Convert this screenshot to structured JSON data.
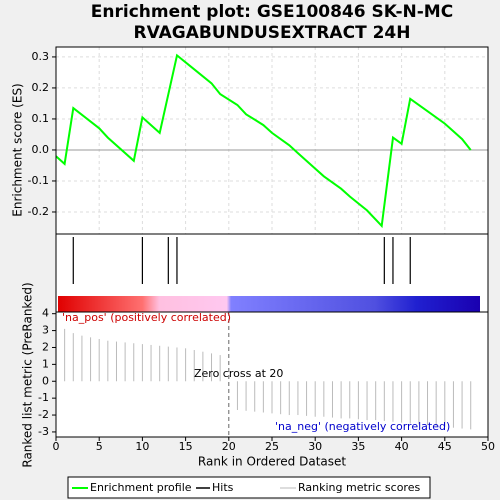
{
  "chart_data": [
    {
      "type": "line",
      "title": [
        "Enrichment plot: GSE100846 SK-N-MC",
        "RVAGABUNDUSEXTRACT 24H"
      ],
      "y_label": "Enrichment score (ES)",
      "xlim": [
        0,
        50
      ],
      "ylim": [
        -0.271,
        0.332
      ],
      "yticks": [
        -0.2,
        -0.1,
        {
          "value": 0,
          "label": "0.0"
        },
        0.1,
        0.2,
        0.3
      ],
      "grid": true,
      "x": [
        0,
        1,
        2,
        5,
        6,
        9,
        10,
        12,
        14,
        16,
        18,
        19,
        21,
        22,
        24,
        25,
        27,
        28,
        30,
        31,
        33,
        34,
        36,
        37.7,
        39,
        40,
        41,
        43,
        45,
        47,
        48
      ],
      "series": [
        {
          "name": "Enrichment profile",
          "color": "#00ff00",
          "values": [
            -0.02,
            -0.045,
            0.135,
            0.07,
            0.04,
            -0.035,
            0.105,
            0.055,
            0.305,
            0.26,
            0.215,
            0.18,
            0.145,
            0.115,
            0.08,
            0.055,
            0.015,
            -0.01,
            -0.06,
            -0.085,
            -0.125,
            -0.15,
            -0.195,
            -0.245,
            0.04,
            0.02,
            0.165,
            0.125,
            0.085,
            0.035,
            0.0
          ]
        }
      ]
    },
    {
      "type": "rug",
      "xlim": [
        0,
        50
      ],
      "name": "Hits",
      "color": "#000000",
      "x": [
        2,
        10,
        13,
        14,
        38,
        39,
        41
      ]
    },
    {
      "type": "bar",
      "xlim": [
        0,
        50
      ],
      "ylim": [
        -3.3,
        4.1
      ],
      "x_label": "Rank in Ordered Dataset",
      "y_label": "Ranked list metric (PreRanked)",
      "xticks": [
        0,
        5,
        10,
        15,
        20,
        25,
        30,
        35,
        40,
        45,
        50
      ],
      "yticks": [
        -3,
        -2,
        -1,
        0,
        1,
        2,
        3,
        4
      ],
      "name": "Ranking metric scores",
      "color": "#bbbbbb",
      "x": [
        1,
        2,
        3,
        4,
        5,
        6,
        7,
        8,
        9,
        10,
        11,
        12,
        13,
        14,
        15,
        16,
        17,
        18,
        19,
        21,
        22,
        23,
        24,
        25,
        26,
        27,
        28,
        29,
        30,
        31,
        32,
        33,
        34,
        35,
        36,
        37,
        38,
        39,
        40,
        41,
        42,
        43,
        44,
        45,
        46,
        47,
        48
      ],
      "values": [
        3.1,
        2.85,
        2.7,
        2.6,
        2.5,
        2.4,
        2.35,
        2.3,
        2.25,
        2.2,
        2.15,
        2.1,
        2.05,
        2.0,
        1.95,
        1.85,
        1.75,
        1.65,
        1.55,
        -1.7,
        -1.75,
        -1.8,
        -1.85,
        -1.9,
        -1.95,
        -2.0,
        -2.0,
        -2.05,
        -2.1,
        -2.1,
        -2.15,
        -2.2,
        -2.2,
        -2.25,
        -2.3,
        -2.3,
        -2.35,
        -2.4,
        -2.45,
        -2.5,
        -2.55,
        -2.6,
        -2.65,
        -2.7,
        -2.75,
        -2.8,
        -2.85
      ],
      "zero_cross": 20,
      "annotations": [
        "'na_pos' (positively correlated)",
        "Zero cross at 20",
        "'na_neg' (negatively correlated)"
      ]
    }
  ]
}
